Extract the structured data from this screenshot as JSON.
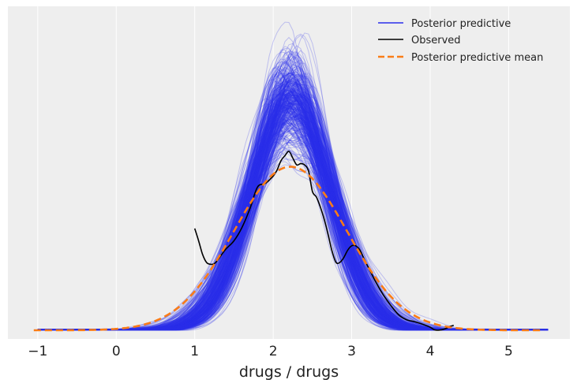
{
  "chart_data": {
    "type": "line",
    "title": "",
    "xlabel": "drugs / drugs",
    "ylabel": "",
    "xlim": [
      -1.38,
      5.78
    ],
    "ylim": [
      -0.014,
      0.525
    ],
    "xticks": [
      -1,
      0,
      1,
      2,
      3,
      4,
      5
    ],
    "xtick_labels": [
      "−1",
      "0",
      "1",
      "2",
      "3",
      "4",
      "5"
    ],
    "yticks_shown": false,
    "grid": true,
    "legend_placement": "top-right",
    "background_color": "#eeeeee",
    "series": [
      {
        "name": "Posterior predictive",
        "kind": "sample-curves",
        "color": "#2a2eec",
        "opacity": 0.25,
        "x_range": [
          -1.0,
          5.5
        ],
        "peak_x_range": [
          1.95,
          2.45
        ],
        "peak_height_range": [
          0.27,
          0.48
        ],
        "approx_sample_count": 400
      },
      {
        "name": "Observed",
        "kind": "line",
        "color": "#000000",
        "x": [
          1.0,
          1.05,
          1.1,
          1.15,
          1.2,
          1.25,
          1.3,
          1.35,
          1.4,
          1.5,
          1.6,
          1.7,
          1.8,
          1.9,
          2.0,
          2.05,
          2.1,
          2.15,
          2.2,
          2.25,
          2.3,
          2.35,
          2.4,
          2.45,
          2.5,
          2.55,
          2.6,
          2.65,
          2.7,
          2.75,
          2.8,
          2.85,
          2.9,
          2.95,
          3.0,
          3.05,
          3.1,
          3.15,
          3.2,
          3.3,
          3.4,
          3.5,
          3.6,
          3.7,
          3.8,
          3.9,
          4.0,
          4.05,
          4.1,
          4.15,
          4.2,
          4.25,
          4.3
        ],
        "y": [
          0.165,
          0.145,
          0.123,
          0.11,
          0.107,
          0.108,
          0.115,
          0.124,
          0.132,
          0.145,
          0.166,
          0.196,
          0.232,
          0.238,
          0.25,
          0.26,
          0.275,
          0.283,
          0.29,
          0.279,
          0.268,
          0.27,
          0.268,
          0.258,
          0.225,
          0.216,
          0.2,
          0.18,
          0.155,
          0.128,
          0.11,
          0.11,
          0.118,
          0.13,
          0.137,
          0.137,
          0.131,
          0.118,
          0.105,
          0.08,
          0.058,
          0.04,
          0.025,
          0.017,
          0.014,
          0.01,
          0.005,
          0.001,
          0.0,
          0.001,
          0.003,
          0.006,
          0.008
        ]
      },
      {
        "name": "Posterior predictive mean",
        "kind": "line",
        "dash": "dashed",
        "color": "#fa7c17",
        "mu": 2.22,
        "sigma": 0.72,
        "amplitude": 0.265,
        "x_range": [
          -1.05,
          5.45
        ]
      }
    ]
  }
}
